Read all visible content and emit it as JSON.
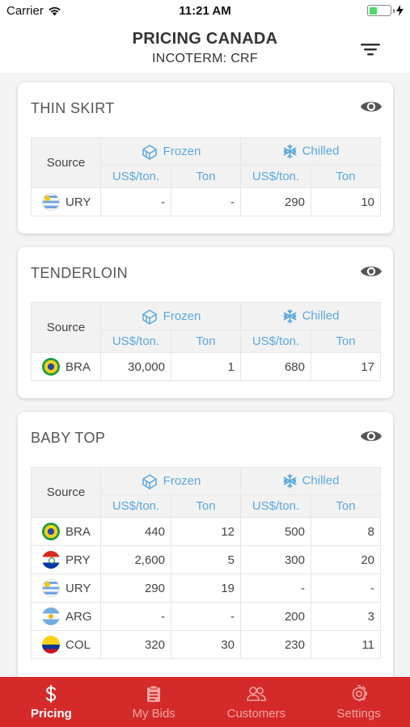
{
  "status_bar": {
    "carrier": "Carrier",
    "time": "11:21 AM"
  },
  "header": {
    "title": "PRICING CANADA",
    "subtitle": "INCOTERM: CRF"
  },
  "table_headers": {
    "source": "Source",
    "frozen": "Frozen",
    "chilled": "Chilled",
    "unit_price": "US$/ton.",
    "unit_ton": "Ton"
  },
  "cards": [
    {
      "title": "THIN SKIRT",
      "rows": [
        {
          "code": "URY",
          "frozen_price": "-",
          "frozen_ton": "-",
          "chilled_price": "290",
          "chilled_ton": "10"
        }
      ]
    },
    {
      "title": "TENDERLOIN",
      "rows": [
        {
          "code": "BRA",
          "frozen_price": "30,000",
          "frozen_ton": "1",
          "chilled_price": "680",
          "chilled_ton": "17"
        }
      ]
    },
    {
      "title": "BABY TOP",
      "rows": [
        {
          "code": "BRA",
          "frozen_price": "440",
          "frozen_ton": "12",
          "chilled_price": "500",
          "chilled_ton": "8"
        },
        {
          "code": "PRY",
          "frozen_price": "2,600",
          "frozen_ton": "5",
          "chilled_price": "300",
          "chilled_ton": "20"
        },
        {
          "code": "URY",
          "frozen_price": "290",
          "frozen_ton": "19",
          "chilled_price": "-",
          "chilled_ton": "-"
        },
        {
          "code": "ARG",
          "frozen_price": "-",
          "frozen_ton": "-",
          "chilled_price": "200",
          "chilled_ton": "3"
        },
        {
          "code": "COL",
          "frozen_price": "320",
          "frozen_ton": "30",
          "chilled_price": "230",
          "chilled_ton": "11"
        }
      ]
    }
  ],
  "tabbar": {
    "pricing": "Pricing",
    "my_bids": "My Bids",
    "customers": "Customers",
    "settings": "Settings"
  },
  "colors": {
    "accent_blue": "#5aa8e0",
    "tabbar_red": "#d52a2a",
    "battery_green": "#4cd964"
  },
  "icons": [
    "wifi-icon",
    "battery-icon",
    "filter-icon",
    "eye-icon",
    "frozen-icon",
    "snowflake-icon",
    "dollar-icon",
    "clipboard-icon",
    "customers-icon",
    "gear-icon"
  ]
}
